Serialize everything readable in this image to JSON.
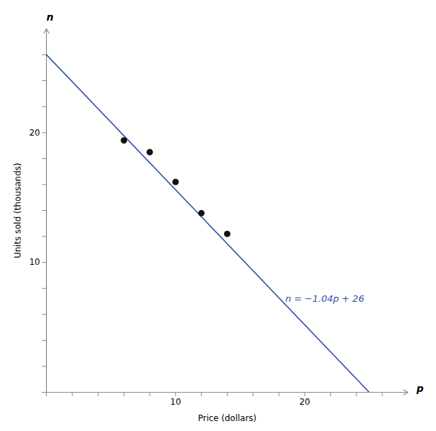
{
  "chart_data": {
    "type": "scatter",
    "xlabel": "Price (dollars)",
    "ylabel": "Units sold (thousands)",
    "x_axis_symbol": "p",
    "y_axis_symbol": "n",
    "xlim": [
      0,
      28
    ],
    "ylim": [
      0,
      28
    ],
    "xticks": [
      {
        "value": 0,
        "label": null
      },
      {
        "value": 2,
        "label": null
      },
      {
        "value": 4,
        "label": null
      },
      {
        "value": 6,
        "label": null
      },
      {
        "value": 8,
        "label": null
      },
      10,
      {
        "value": 12,
        "label": null
      },
      {
        "value": 14,
        "label": null
      },
      {
        "value": 16,
        "label": null
      },
      {
        "value": 18,
        "label": null
      },
      20,
      {
        "value": 22,
        "label": null
      },
      {
        "value": 24,
        "label": null
      },
      {
        "value": 26,
        "label": null
      }
    ],
    "yticks": [
      {
        "value": 0,
        "label": null
      },
      {
        "value": 2,
        "label": null
      },
      {
        "value": 4,
        "label": null
      },
      {
        "value": 6,
        "label": null
      },
      {
        "value": 8,
        "label": null
      },
      10,
      {
        "value": 12,
        "label": null
      },
      {
        "value": 14,
        "label": null
      },
      {
        "value": 16,
        "label": null
      },
      {
        "value": 18,
        "label": null
      },
      20,
      {
        "value": 22,
        "label": null
      },
      {
        "value": 24,
        "label": null
      },
      {
        "value": 26,
        "label": null
      }
    ],
    "grid": false,
    "series": [
      {
        "type": "line",
        "color": "#2a52a0",
        "x": [
          0,
          25
        ],
        "values": [
          26,
          0
        ]
      },
      {
        "type": "scatter",
        "color": "#111111",
        "x": [
          6,
          8,
          10,
          12,
          14
        ],
        "values": [
          19.4,
          18.5,
          16.2,
          13.8,
          12.2
        ]
      }
    ],
    "annotations": [
      {
        "text": "n = −1.04p + 26",
        "x": 18.5,
        "y": 7.2,
        "color": "#2a52a0"
      }
    ]
  }
}
